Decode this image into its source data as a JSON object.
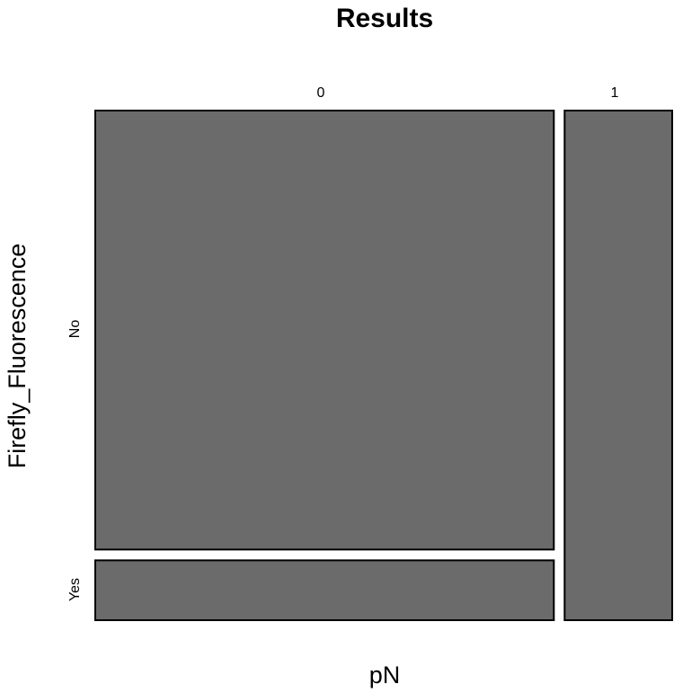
{
  "colors": {
    "tile_fill": "#6b6b6b",
    "tile_stroke": "#000000",
    "background": "#ffffff"
  },
  "chart_data": {
    "type": "mosaic",
    "title": "Results",
    "xlabel": "pN",
    "ylabel": "Firefly_Fluorescence",
    "x_categories": [
      "0",
      "1"
    ],
    "y_categories": [
      "No",
      "Yes"
    ],
    "x_proportions": [
      0.81,
      0.19
    ],
    "cells": [
      {
        "x": "0",
        "y": "No",
        "fraction": 0.88
      },
      {
        "x": "0",
        "y": "Yes",
        "fraction": 0.12
      },
      {
        "x": "1",
        "y": "No",
        "fraction": 1.0
      },
      {
        "x": "1",
        "y": "Yes",
        "fraction": 0.0
      }
    ],
    "grid": false,
    "legend": "none"
  }
}
